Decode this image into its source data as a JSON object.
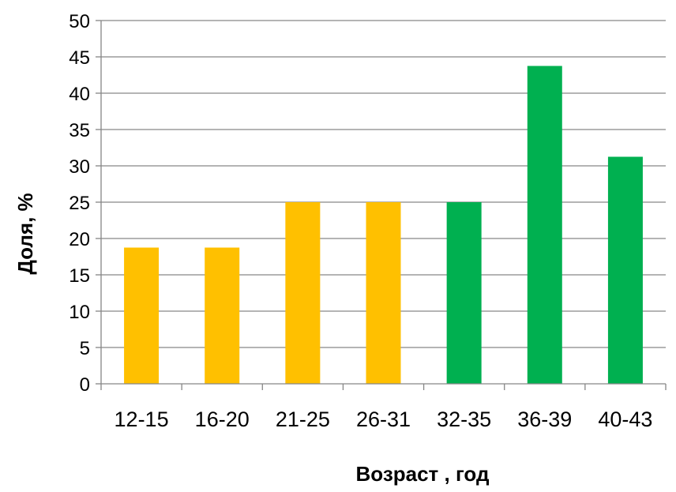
{
  "chart_data": {
    "type": "bar",
    "title": "",
    "xlabel": "Возраст , год",
    "ylabel": "Доля, %",
    "categories": [
      "12-15",
      "16-20",
      "21-25",
      "26-31",
      "32-35",
      "36-39",
      "40-43"
    ],
    "values": [
      18.75,
      18.75,
      25,
      25,
      25,
      43.75,
      31.25
    ],
    "bar_colors": [
      "#FFC000",
      "#FFC000",
      "#FFC000",
      "#FFC000",
      "#00B050",
      "#00B050",
      "#00B050"
    ],
    "ylim": [
      0,
      50
    ],
    "yticks": [
      0,
      5,
      10,
      15,
      20,
      25,
      30,
      35,
      40,
      45,
      50
    ],
    "grid": "horizontal",
    "legend": "none"
  }
}
